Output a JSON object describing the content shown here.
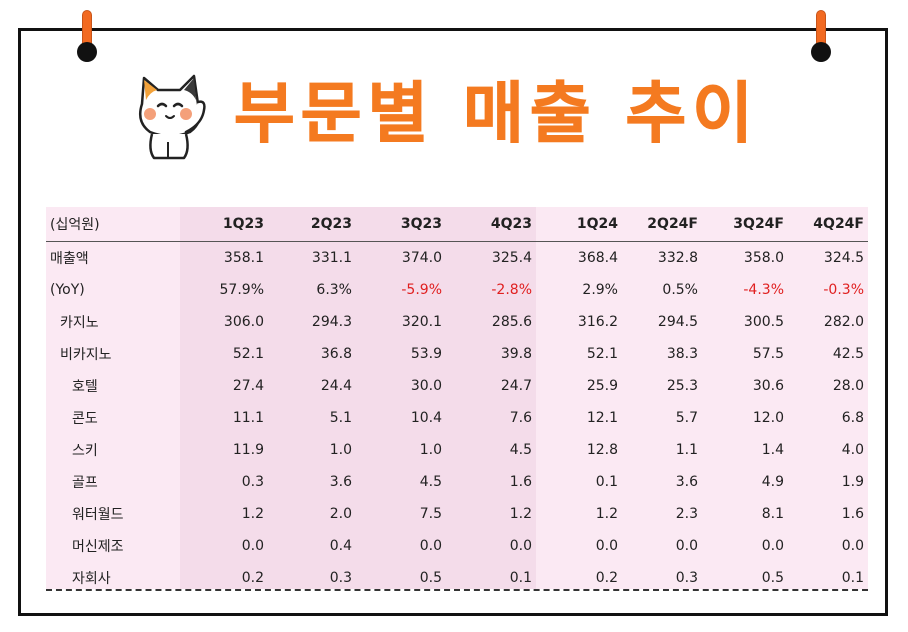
{
  "title": "부문별 매출 추이",
  "colors": {
    "accent": "#f47a20",
    "negative": "#e02020",
    "shade": "#fbe9f3",
    "shade_strong": "#f4dcea"
  },
  "table": {
    "unit": "(십억원)",
    "columns": [
      "1Q23",
      "2Q23",
      "3Q23",
      "4Q23",
      "1Q24",
      "2Q24F",
      "3Q24F",
      "4Q24F"
    ],
    "rows": [
      {
        "label": "매출액",
        "indent": 0,
        "values": [
          "358.1",
          "331.1",
          "374.0",
          "325.4",
          "368.4",
          "332.8",
          "358.0",
          "324.5"
        ]
      },
      {
        "label": "(YoY)",
        "indent": 0,
        "values": [
          "57.9%",
          "6.3%",
          "-5.9%",
          "-2.8%",
          "2.9%",
          "0.5%",
          "-4.3%",
          "-0.3%"
        ]
      },
      {
        "label": "카지노",
        "indent": 1,
        "values": [
          "306.0",
          "294.3",
          "320.1",
          "285.6",
          "316.2",
          "294.5",
          "300.5",
          "282.0"
        ]
      },
      {
        "label": "비카지노",
        "indent": 1,
        "values": [
          "52.1",
          "36.8",
          "53.9",
          "39.8",
          "52.1",
          "38.3",
          "57.5",
          "42.5"
        ]
      },
      {
        "label": "호텔",
        "indent": 2,
        "values": [
          "27.4",
          "24.4",
          "30.0",
          "24.7",
          "25.9",
          "25.3",
          "30.6",
          "28.0"
        ]
      },
      {
        "label": "콘도",
        "indent": 2,
        "values": [
          "11.1",
          "5.1",
          "10.4",
          "7.6",
          "12.1",
          "5.7",
          "12.0",
          "6.8"
        ]
      },
      {
        "label": "스키",
        "indent": 2,
        "values": [
          "11.9",
          "1.0",
          "1.0",
          "4.5",
          "12.8",
          "1.1",
          "1.4",
          "4.0"
        ]
      },
      {
        "label": "골프",
        "indent": 2,
        "values": [
          "0.3",
          "3.6",
          "4.5",
          "1.6",
          "0.1",
          "3.6",
          "4.9",
          "1.9"
        ]
      },
      {
        "label": "워터월드",
        "indent": 2,
        "values": [
          "1.2",
          "2.0",
          "7.5",
          "1.2",
          "1.2",
          "2.3",
          "8.1",
          "1.6"
        ]
      },
      {
        "label": "머신제조",
        "indent": 2,
        "values": [
          "0.0",
          "0.4",
          "0.0",
          "0.0",
          "0.0",
          "0.0",
          "0.0",
          "0.0"
        ]
      },
      {
        "label": "자회사",
        "indent": 2,
        "values": [
          "0.2",
          "0.3",
          "0.5",
          "0.1",
          "0.2",
          "0.3",
          "0.5",
          "0.1"
        ]
      }
    ]
  }
}
